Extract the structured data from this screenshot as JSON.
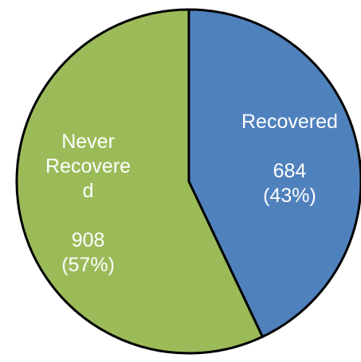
{
  "chart_data": {
    "type": "pie",
    "categories": [
      "Recovered",
      "Never Recovered"
    ],
    "values": [
      684,
      908
    ],
    "percent_labels": [
      "(43%)",
      "(57%)"
    ],
    "colors": [
      "#4f81bd",
      "#9bbb59"
    ],
    "start_angle": 0,
    "direction": "clockwise"
  }
}
